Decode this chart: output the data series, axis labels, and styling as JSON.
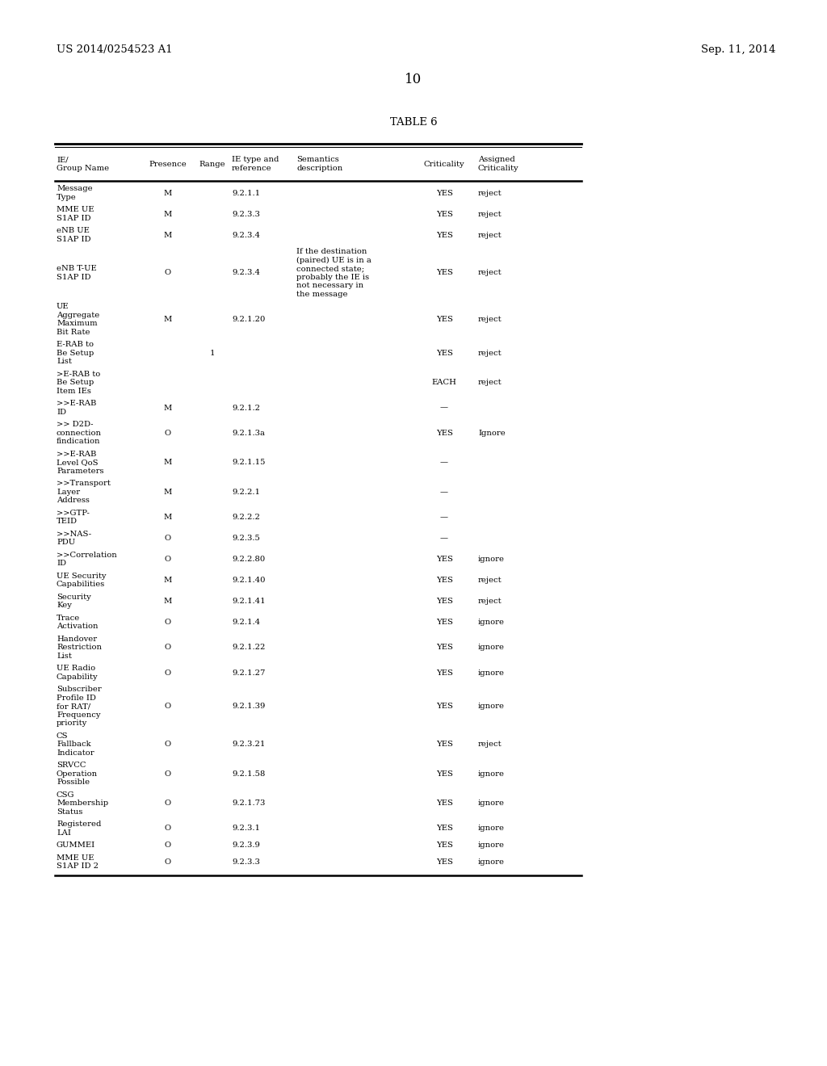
{
  "header_left": "US 2014/0254523 A1",
  "header_right": "Sep. 11, 2014",
  "page_number": "10",
  "table_title": "TABLE 6",
  "col_headers": [
    [
      "IE/",
      "Group Name"
    ],
    [
      "Presence"
    ],
    [
      "Range"
    ],
    [
      "IE type and",
      "reference"
    ],
    [
      "Semantics",
      "description"
    ],
    [
      "Criticality"
    ],
    [
      "Assigned",
      "Criticality"
    ]
  ],
  "rows": [
    [
      "Message\nType",
      "M",
      "",
      "9.2.1.1",
      "",
      "YES",
      "reject"
    ],
    [
      "MME UE\nS1AP ID",
      "M",
      "",
      "9.2.3.3",
      "",
      "YES",
      "reject"
    ],
    [
      "eNB UE\nS1AP ID",
      "M",
      "",
      "9.2.3.4",
      "",
      "YES",
      "reject"
    ],
    [
      "eNB T-UE\nS1AP ID",
      "O",
      "",
      "9.2.3.4",
      "If the destination\n(paired) UE is in a\nconnected state;\nprobably the IE is\nnot necessary in\nthe message",
      "YES",
      "reject"
    ],
    [
      "UE\nAggregate\nMaximum\nBit Rate",
      "M",
      "",
      "9.2.1.20",
      "",
      "YES",
      "reject"
    ],
    [
      "E-RAB to\nBe Setup\nList",
      "",
      "1",
      "",
      "",
      "YES",
      "reject"
    ],
    [
      ">E-RAB to\nBe Setup\nItem IEs",
      "",
      "",
      "",
      "",
      "EACH",
      "reject"
    ],
    [
      ">>E-RAB\nID",
      "M",
      "",
      "9.2.1.2",
      "",
      "—",
      ""
    ],
    [
      ">> D2D-\nconnection\nfindication",
      "O",
      "",
      "9.2.1.3a",
      "",
      "YES",
      "Ignore"
    ],
    [
      ">>E-RAB\nLevel QoS\nParameters",
      "M",
      "",
      "9.2.1.15",
      "",
      "—",
      ""
    ],
    [
      ">>Transport\nLayer\nAddress",
      "M",
      "",
      "9.2.2.1",
      "",
      "—",
      ""
    ],
    [
      ">>GTP-\nTEID",
      "M",
      "",
      "9.2.2.2",
      "",
      "—",
      ""
    ],
    [
      ">>NAS-\nPDU",
      "O",
      "",
      "9.2.3.5",
      "",
      "—",
      ""
    ],
    [
      ">>Correlation\nID",
      "O",
      "",
      "9.2.2.80",
      "",
      "YES",
      "ignore"
    ],
    [
      "UE Security\nCapabilities",
      "M",
      "",
      "9.2.1.40",
      "",
      "YES",
      "reject"
    ],
    [
      "Security\nKey",
      "M",
      "",
      "9.2.1.41",
      "",
      "YES",
      "reject"
    ],
    [
      "Trace\nActivation",
      "O",
      "",
      "9.2.1.4",
      "",
      "YES",
      "ignore"
    ],
    [
      "Handover\nRestriction\nList",
      "O",
      "",
      "9.2.1.22",
      "",
      "YES",
      "ignore"
    ],
    [
      "UE Radio\nCapability",
      "O",
      "",
      "9.2.1.27",
      "",
      "YES",
      "ignore"
    ],
    [
      "Subscriber\nProfile ID\nfor RAT/\nFrequency\npriority",
      "O",
      "",
      "9.2.1.39",
      "",
      "YES",
      "ignore"
    ],
    [
      "CS\nFallback\nIndicator",
      "O",
      "",
      "9.2.3.21",
      "",
      "YES",
      "reject"
    ],
    [
      "SRVCC\nOperation\nPossible",
      "O",
      "",
      "9.2.1.58",
      "",
      "YES",
      "ignore"
    ],
    [
      "CSG\nMembership\nStatus",
      "O",
      "",
      "9.2.1.73",
      "",
      "YES",
      "ignore"
    ],
    [
      "Registered\nLAI",
      "O",
      "",
      "9.2.3.1",
      "",
      "YES",
      "ignore"
    ],
    [
      "GUMMEI",
      "O",
      "",
      "9.2.3.9",
      "",
      "YES",
      "ignore"
    ],
    [
      "MME UE\nS1AP ID 2",
      "O",
      "",
      "9.2.3.3",
      "",
      "YES",
      "ignore"
    ]
  ],
  "background_color": "#ffffff",
  "text_color": "#000000",
  "font_size": 7.2,
  "header_font_size": 9.5,
  "title_font_size": 9.5,
  "page_num_font_size": 12
}
